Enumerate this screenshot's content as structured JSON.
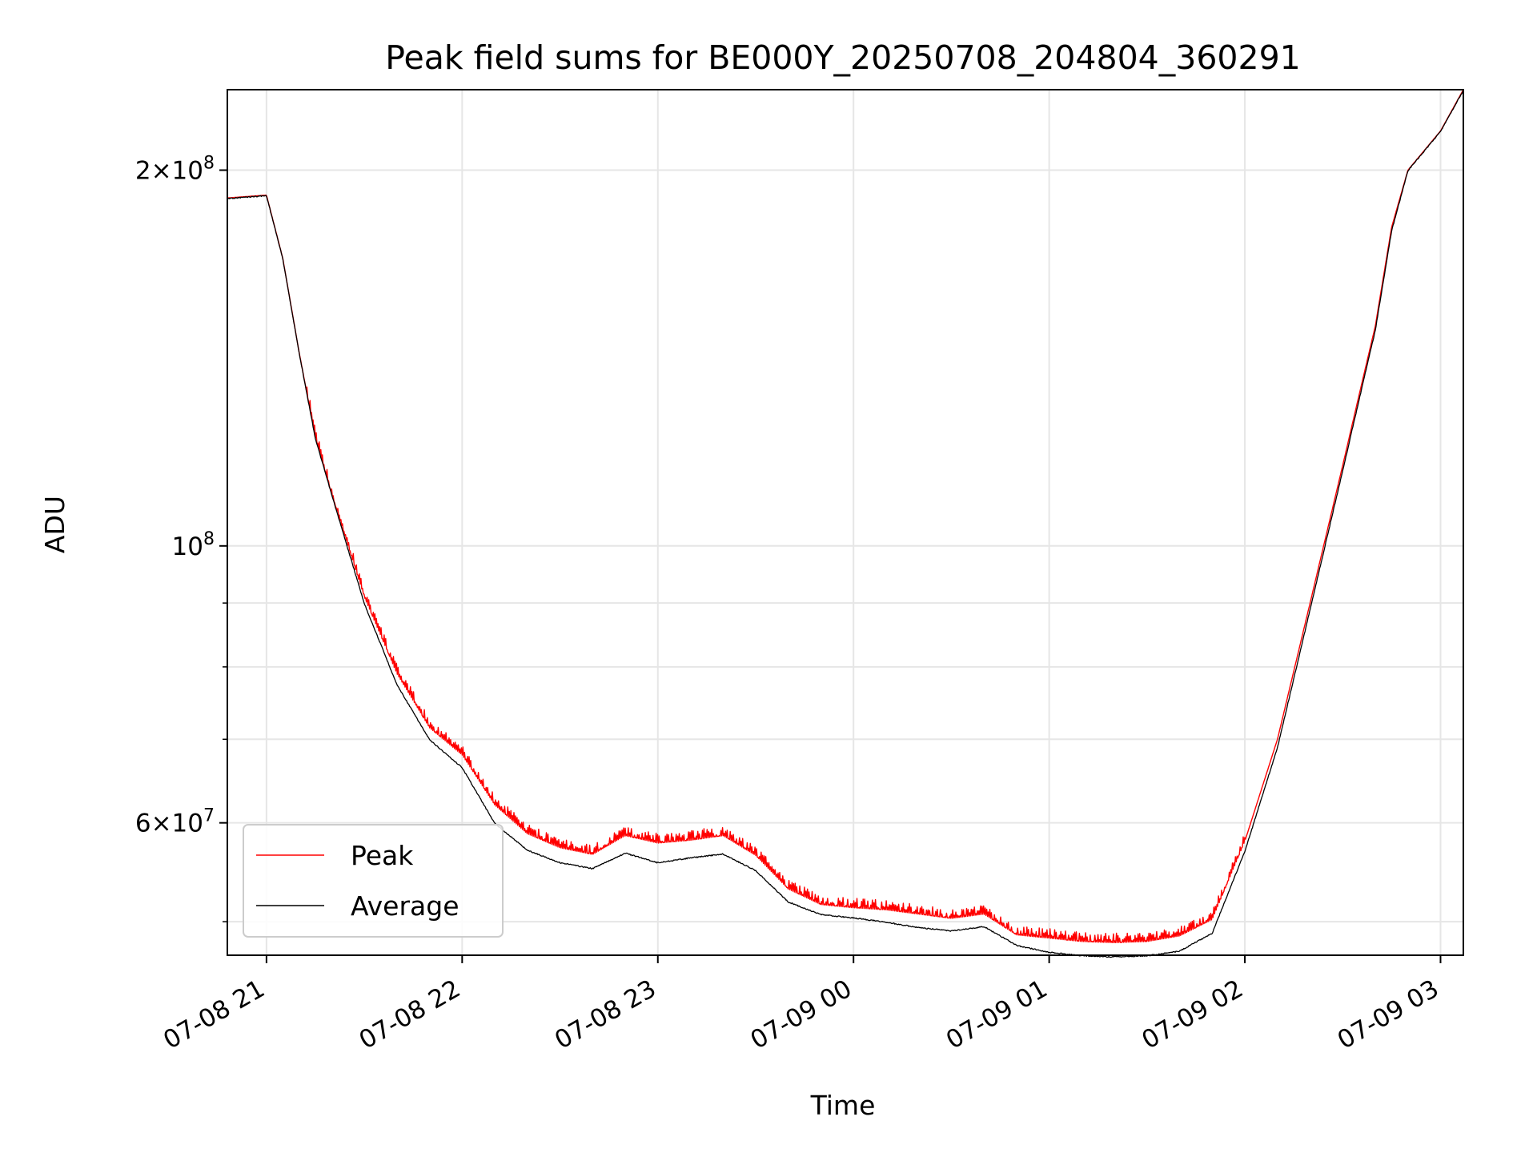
{
  "chart_data": {
    "type": "line",
    "title": "Peak field sums for BE000Y_20250708_204804_360291",
    "xlabel": "Time",
    "ylabel": "ADU",
    "yscale": "log",
    "x_range": [
      "07-08 20:48",
      "07-09 03:07"
    ],
    "y_range": [
      47000000,
      232000000
    ],
    "grid": true,
    "legend_position": "lower left",
    "x_ticks": [
      "07-08 21",
      "07-08 22",
      "07-08 23",
      "07-09 00",
      "07-09 01",
      "07-09 02",
      "07-09 03"
    ],
    "y_ticks": [
      {
        "value": 200000000,
        "base": "2×10",
        "exp": "8"
      },
      {
        "value": 100000000,
        "base": "10",
        "exp": "8"
      },
      {
        "value": 60000000,
        "base": "6×10",
        "exp": "7"
      }
    ],
    "x": [
      "07-08 20:48",
      "07-08 21:00",
      "07-08 21:05",
      "07-08 21:10",
      "07-08 21:15",
      "07-08 21:20",
      "07-08 21:30",
      "07-08 21:40",
      "07-08 21:50",
      "07-08 22:00",
      "07-08 22:10",
      "07-08 22:20",
      "07-08 22:30",
      "07-08 22:40",
      "07-08 22:50",
      "07-08 23:00",
      "07-08 23:10",
      "07-08 23:20",
      "07-08 23:30",
      "07-08 23:40",
      "07-08 23:50",
      "07-09 00:00",
      "07-09 00:10",
      "07-09 00:20",
      "07-09 00:30",
      "07-09 00:40",
      "07-09 00:50",
      "07-09 01:00",
      "07-09 01:10",
      "07-09 01:20",
      "07-09 01:30",
      "07-09 01:40",
      "07-09 01:50",
      "07-09 02:00",
      "07-09 02:10",
      "07-09 02:20",
      "07-09 02:30",
      "07-09 02:35",
      "07-09 02:40",
      "07-09 02:45",
      "07-09 02:50",
      "07-09 03:00",
      "07-09 03:07"
    ],
    "series": [
      {
        "name": "Peak",
        "color": "#ff0000",
        "values": [
          190000000,
          191000000,
          170000000,
          143000000,
          122000000,
          110000000,
          91000000,
          79000000,
          71500000,
          68000000,
          62000000,
          58800000,
          57300000,
          56600000,
          58600000,
          57800000,
          58100000,
          58600000,
          56500000,
          53100000,
          51600000,
          51300000,
          51100000,
          50700000,
          50300000,
          50700000,
          48800000,
          48500000,
          48200000,
          48100000,
          48200000,
          48700000,
          50200000,
          58000000,
          70000000,
          90000000,
          116000000,
          132000000,
          150000000,
          180000000,
          200000000,
          215000000,
          232000000
        ]
      },
      {
        "name": "Average",
        "color": "#000000",
        "values": [
          190000000,
          191000000,
          170000000,
          143000000,
          122000000,
          110000000,
          90000000,
          77500000,
          70000000,
          66500000,
          60000000,
          57100000,
          55800000,
          55200000,
          56800000,
          55800000,
          56300000,
          56700000,
          55000000,
          51900000,
          50700000,
          50400000,
          50000000,
          49500000,
          49200000,
          49600000,
          47900000,
          47300000,
          47000000,
          46900000,
          47000000,
          47400000,
          49000000,
          57000000,
          69000000,
          89000000,
          115000000,
          131000000,
          149000000,
          179000000,
          200000000,
          215000000,
          232000000
        ]
      }
    ]
  }
}
